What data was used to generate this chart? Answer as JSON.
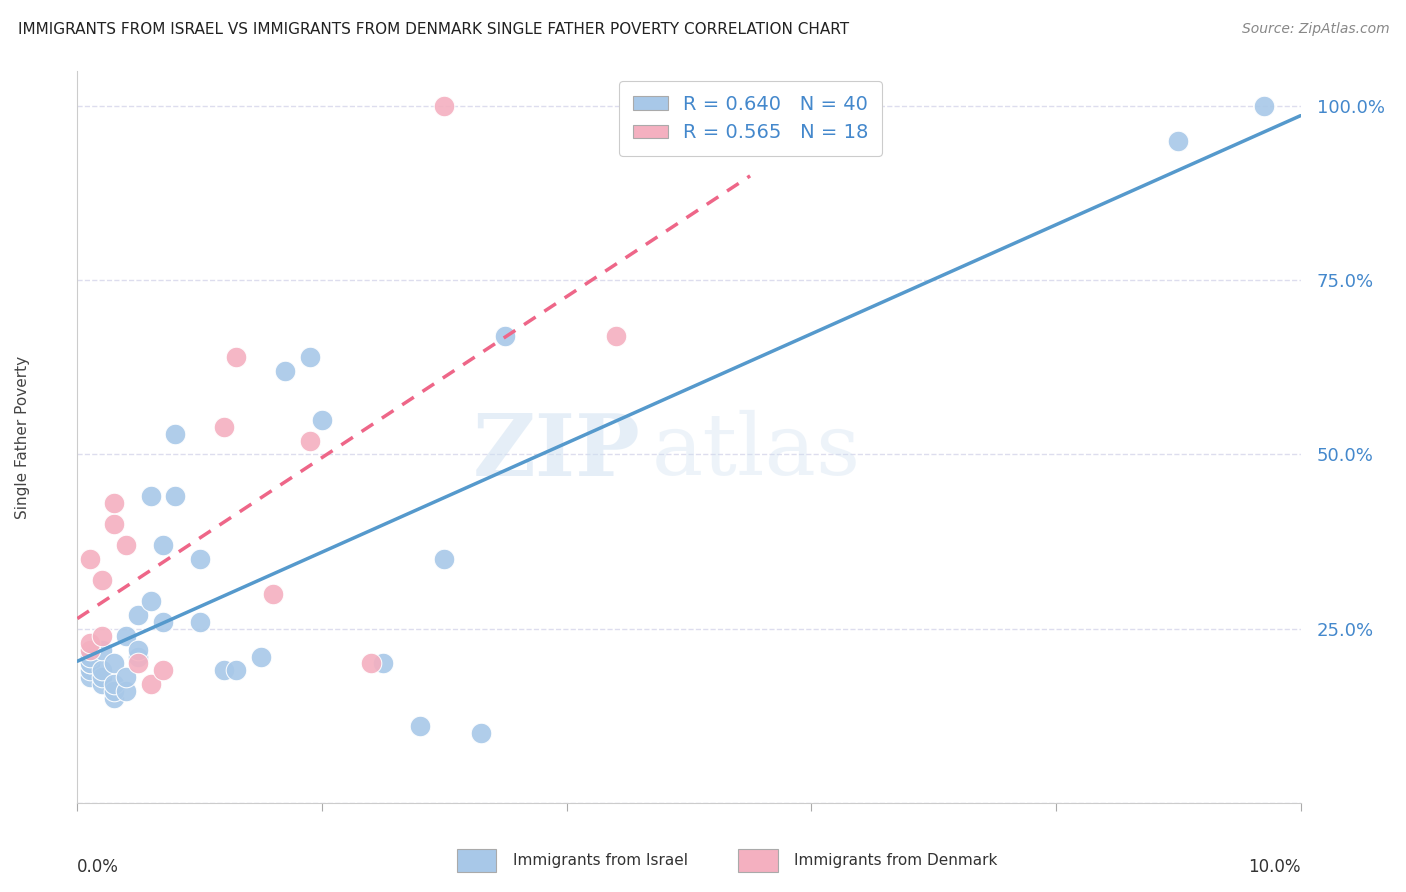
{
  "title": "IMMIGRANTS FROM ISRAEL VS IMMIGRANTS FROM DENMARK SINGLE FATHER POVERTY CORRELATION CHART",
  "source": "Source: ZipAtlas.com",
  "ylabel": "Single Father Poverty",
  "y_ticks": [
    0.0,
    0.25,
    0.5,
    0.75,
    1.0
  ],
  "y_tick_labels": [
    "",
    "25.0%",
    "50.0%",
    "75.0%",
    "100.0%"
  ],
  "x_range": [
    0.0,
    0.1
  ],
  "y_range": [
    0.0,
    1.05
  ],
  "israel_color": "#a8c8e8",
  "denmark_color": "#f4b0c0",
  "israel_line_color": "#5599cc",
  "denmark_line_color": "#ee6688",
  "legend_text_color": "#4488cc",
  "israel_R": 0.64,
  "israel_N": 40,
  "denmark_R": 0.565,
  "denmark_N": 18,
  "watermark_zip": "ZIP",
  "watermark_atlas": "atlas",
  "israel_points_x": [
    0.001,
    0.001,
    0.001,
    0.001,
    0.001,
    0.002,
    0.002,
    0.002,
    0.002,
    0.003,
    0.003,
    0.003,
    0.003,
    0.004,
    0.004,
    0.004,
    0.005,
    0.005,
    0.005,
    0.006,
    0.006,
    0.007,
    0.007,
    0.008,
    0.008,
    0.01,
    0.01,
    0.012,
    0.013,
    0.015,
    0.017,
    0.019,
    0.02,
    0.025,
    0.028,
    0.03,
    0.033,
    0.035,
    0.09,
    0.097
  ],
  "israel_points_y": [
    0.18,
    0.19,
    0.2,
    0.2,
    0.21,
    0.17,
    0.18,
    0.19,
    0.22,
    0.15,
    0.16,
    0.17,
    0.2,
    0.16,
    0.18,
    0.24,
    0.21,
    0.22,
    0.27,
    0.29,
    0.44,
    0.26,
    0.37,
    0.44,
    0.53,
    0.26,
    0.35,
    0.19,
    0.19,
    0.21,
    0.62,
    0.64,
    0.55,
    0.2,
    0.11,
    0.35,
    0.1,
    0.67,
    0.95,
    1.0
  ],
  "denmark_points_x": [
    0.001,
    0.001,
    0.001,
    0.002,
    0.002,
    0.003,
    0.003,
    0.004,
    0.005,
    0.006,
    0.007,
    0.012,
    0.013,
    0.016,
    0.019,
    0.024,
    0.03,
    0.044
  ],
  "denmark_points_y": [
    0.22,
    0.23,
    0.35,
    0.24,
    0.32,
    0.4,
    0.43,
    0.37,
    0.2,
    0.17,
    0.19,
    0.54,
    0.64,
    0.3,
    0.52,
    0.2,
    1.0,
    0.67
  ],
  "background_color": "#ffffff",
  "grid_color": "#ddddee",
  "x_tick_positions": [
    0.0,
    0.02,
    0.04,
    0.06,
    0.08,
    0.1
  ]
}
